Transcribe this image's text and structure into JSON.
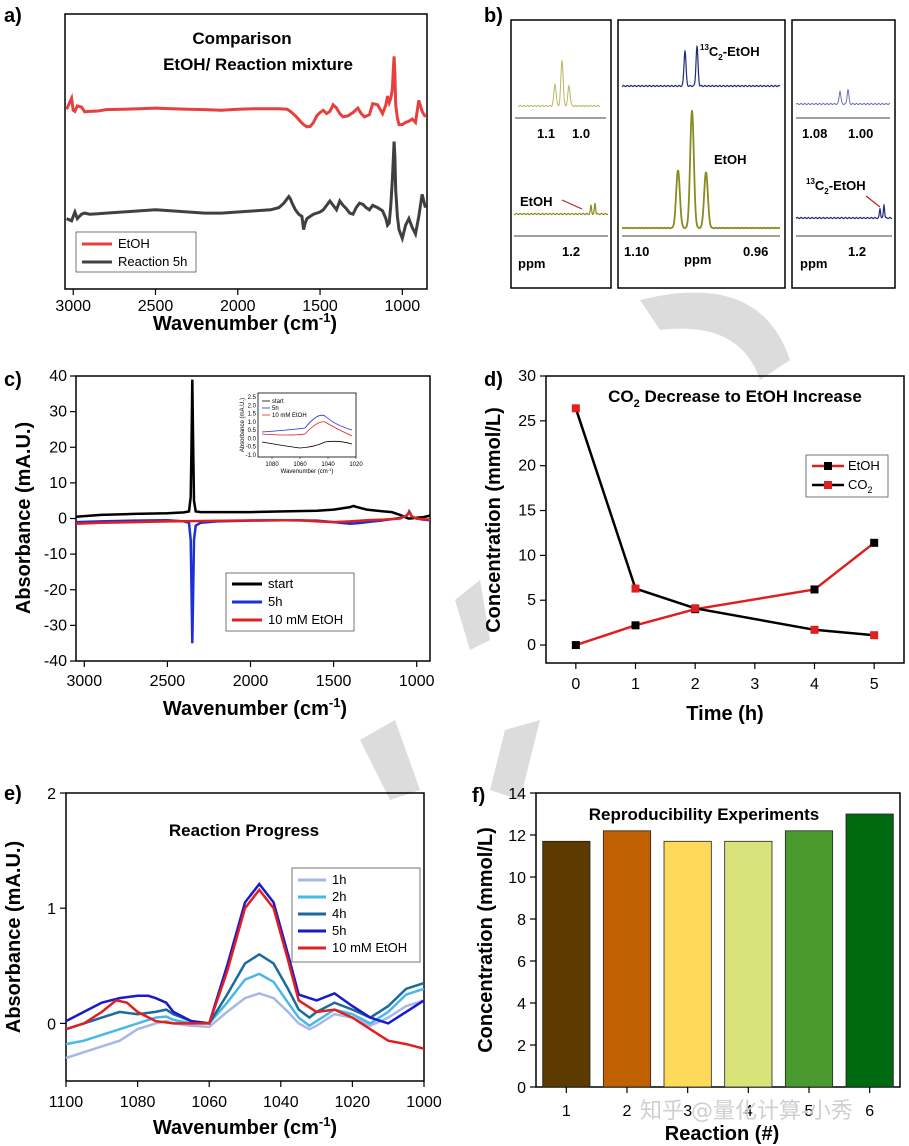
{
  "panel_labels": [
    "a)",
    "b)",
    "c)",
    "d)",
    "e)",
    "f)"
  ],
  "watermark": "知乎 @量化计算-小秀",
  "chart_data": [
    {
      "id": "a",
      "type": "line",
      "title_line1": "Comparison",
      "title_line2": "EtOH/ Reaction mixture",
      "xlabel": "Wavenumber (cm",
      "xlabel_sup": "-1",
      "xlabel_end": ")",
      "xlim": [
        3050,
        850
      ],
      "xticks": [
        "3000",
        "2500",
        "2000",
        "1500",
        "1000"
      ],
      "legend": [
        "EtOH",
        "Reaction 5h"
      ],
      "colors": [
        "#e8403f",
        "#404040"
      ],
      "series": [
        {
          "name": "EtOH",
          "x": [
            3040,
            3010,
            3000,
            2990,
            2975,
            2950,
            2930,
            2900,
            2850,
            2800,
            2700,
            2600,
            2500,
            2400,
            2300,
            2200,
            2100,
            2000,
            1900,
            1800,
            1750,
            1700,
            1680,
            1650,
            1620,
            1600,
            1580,
            1560,
            1540,
            1520,
            1500,
            1480,
            1460,
            1440,
            1420,
            1400,
            1380,
            1360,
            1330,
            1300,
            1270,
            1250,
            1230,
            1200,
            1180,
            1150,
            1120,
            1100,
            1090,
            1080,
            1070,
            1060,
            1055,
            1050,
            1045,
            1040,
            1030,
            1020,
            1000,
            980,
            960,
            940,
            920,
            900,
            880,
            860
          ],
          "y": [
            0.4,
            0.9,
            0.35,
            0.3,
            0.55,
            0.5,
            0.28,
            0.3,
            0.32,
            0.38,
            0.4,
            0.42,
            0.45,
            0.42,
            0.4,
            0.38,
            0.35,
            0.4,
            0.42,
            0.42,
            0.42,
            0.4,
            0.3,
            0.1,
            -0.15,
            -0.3,
            -0.4,
            -0.38,
            -0.2,
            0.1,
            0.25,
            0.35,
            0.2,
            0.3,
            0.6,
            0.45,
            0.2,
            0.05,
            0.1,
            0.25,
            0.45,
            0.2,
            0.05,
            0.15,
            0.65,
            0.6,
            0.2,
            0.6,
            1.0,
            0.7,
            0.9,
            1.3,
            2.2,
            2.8,
            2.0,
            0.6,
            0.0,
            -0.3,
            -0.3,
            -0.2,
            -0.15,
            -0.05,
            -0.2,
            0.8,
            0.3,
            0.05
          ]
        },
        {
          "name": "Reaction 5h",
          "x": [
            3040,
            3010,
            3000,
            2990,
            2975,
            2950,
            2930,
            2900,
            2850,
            2800,
            2700,
            2600,
            2500,
            2400,
            2300,
            2200,
            2100,
            2000,
            1900,
            1800,
            1750,
            1720,
            1700,
            1690,
            1680,
            1670,
            1650,
            1630,
            1610,
            1600,
            1590,
            1580,
            1560,
            1540,
            1500,
            1480,
            1460,
            1440,
            1420,
            1400,
            1380,
            1360,
            1340,
            1320,
            1300,
            1280,
            1260,
            1240,
            1220,
            1200,
            1180,
            1150,
            1120,
            1100,
            1090,
            1080,
            1070,
            1060,
            1050,
            1045,
            1040,
            1030,
            1020,
            1000,
            980,
            960,
            940,
            920,
            900,
            880,
            860
          ],
          "y": [
            -0.3,
            -0.4,
            -0.2,
            0.0,
            -0.3,
            -0.1,
            -0.05,
            -0.1,
            -0.08,
            -0.05,
            0.0,
            0.05,
            0.1,
            0.05,
            0.0,
            -0.05,
            -0.05,
            0.0,
            0.05,
            0.1,
            0.2,
            0.4,
            0.6,
            0.7,
            0.6,
            0.4,
            0.1,
            -0.1,
            -0.2,
            -0.8,
            -0.5,
            -0.3,
            -0.2,
            -0.1,
            0.0,
            0.1,
            0.3,
            0.5,
            0.3,
            0.1,
            0.5,
            0.3,
            0.15,
            -0.05,
            -0.1,
            0.2,
            0.4,
            0.35,
            0.2,
            0.1,
            0.3,
            0.2,
            0.05,
            -0.3,
            -0.6,
            -0.5,
            0.3,
            1.5,
            3.2,
            2.5,
            1.0,
            -0.2,
            -0.8,
            -1.2,
            -0.6,
            -0.3,
            -0.7,
            -1.0,
            -0.2,
            0.8,
            0.2
          ]
        }
      ]
    },
    {
      "id": "b",
      "type": "nmr_spectra",
      "boxes": [
        {
          "top_ticks": [
            "1.1",
            "1.0"
          ],
          "bottom_label": "EtOH",
          "ppm_label": "ppm",
          "ppm_value": "1.2"
        },
        {
          "top_label": "C",
          "top_sup": "13",
          "top_sub": "2",
          "top_end": "-EtOH",
          "mid_label": "EtOH",
          "ticks": [
            "1.10",
            "ppm",
            "0.96"
          ]
        },
        {
          "top_ticks": [
            "1.08",
            "1.00"
          ],
          "bottom_label_sup": "13",
          "bottom_label_main": "C",
          "bottom_label_sub": "2",
          "bottom_label_end": "-EtOH",
          "ppm_label": "ppm",
          "ppm_value": "1.2"
        }
      ],
      "colors": {
        "olive": "#8b8a1f",
        "navy": "#1f2a7a",
        "light_olive": "#b9b860",
        "light_navy": "#6a72b8"
      }
    },
    {
      "id": "c",
      "type": "line",
      "ylabel": "Absorbance (mA.U.)",
      "xlabel": "Wavenumber (cm",
      "xlabel_sup": "-1",
      "xlabel_end": ")",
      "xlim": [
        3050,
        920
      ],
      "ylim": [
        -40,
        40
      ],
      "xticks": [
        3000,
        2500,
        2000,
        1500,
        1000
      ],
      "yticks": [
        40,
        30,
        20,
        10,
        0,
        -10,
        -20,
        -30,
        -40
      ],
      "legend": [
        "start",
        "5h",
        "10 mM EtOH"
      ],
      "colors": [
        "#000000",
        "#1f2fd6",
        "#e02020"
      ],
      "series": [
        {
          "name": "start",
          "x": [
            3050,
            2900,
            2700,
            2500,
            2400,
            2370,
            2360,
            2355,
            2350,
            2345,
            2340,
            2330,
            2300,
            2200,
            2000,
            1800,
            1600,
            1500,
            1400,
            1380,
            1360,
            1300,
            1200,
            1150,
            1100,
            1080,
            1060,
            1050,
            1040,
            1000,
            960,
            920
          ],
          "y": [
            0.5,
            1.0,
            1.3,
            1.5,
            1.7,
            2.0,
            6.0,
            20.0,
            39.0,
            20.0,
            5.0,
            2.0,
            1.8,
            1.8,
            1.8,
            2.0,
            2.2,
            2.5,
            3.2,
            3.5,
            3.2,
            2.5,
            2.0,
            1.8,
            1.0,
            0.6,
            0.2,
            0.0,
            0.0,
            0.2,
            0.4,
            0.8
          ]
        },
        {
          "name": "5h",
          "x": [
            3050,
            2900,
            2700,
            2500,
            2400,
            2370,
            2360,
            2355,
            2350,
            2345,
            2340,
            2330,
            2300,
            2200,
            2000,
            1800,
            1600,
            1500,
            1400,
            1350,
            1300,
            1200,
            1150,
            1100,
            1060,
            1050,
            1045,
            1040,
            1030,
            1000,
            960,
            920
          ],
          "y": [
            -1.0,
            -0.8,
            -0.6,
            -0.5,
            -0.8,
            -1.2,
            -6.0,
            -20.0,
            -35.0,
            -20.0,
            -6.0,
            -2.0,
            -1.2,
            -0.8,
            -0.6,
            -0.5,
            -0.6,
            -1.0,
            -1.5,
            -1.3,
            -1.0,
            -0.5,
            -0.2,
            0.2,
            0.8,
            1.5,
            2.0,
            1.6,
            0.6,
            0.0,
            -0.3,
            -0.5
          ]
        },
        {
          "name": "10 mM EtOH",
          "x": [
            3050,
            2900,
            2700,
            2500,
            2300,
            2100,
            1900,
            1700,
            1600,
            1500,
            1400,
            1300,
            1200,
            1100,
            1060,
            1050,
            1045,
            1040,
            1030,
            1000,
            960,
            920
          ],
          "y": [
            -1.5,
            -1.2,
            -1.0,
            -0.8,
            -0.7,
            -0.6,
            -0.5,
            -0.5,
            -0.8,
            -1.0,
            -0.8,
            -0.5,
            -0.3,
            0.0,
            0.8,
            1.5,
            1.8,
            1.5,
            0.6,
            0.0,
            -0.2,
            -0.3
          ]
        }
      ],
      "inset": {
        "ylabel": "Absorbance (mA.U.)",
        "xlabel": "Wavenumber (cm",
        "xlabel_sup": "-1",
        "xlabel_end": ")",
        "xticks": [
          1080,
          1060,
          1040,
          1020
        ],
        "yticks": [
          "2.5",
          "2.0",
          "1.5",
          "1.0",
          "0.5",
          "0.0",
          "-0.5",
          "-1.0"
        ],
        "legend": [
          "start",
          "5h",
          "10 mM EtOH"
        ]
      }
    },
    {
      "id": "d",
      "type": "line",
      "title_main": "CO",
      "title_sub": "2",
      "title_end": " Decrease to EtOH Increase",
      "xlabel": "Time (h)",
      "ylabel": "Concentration (mmol/L)",
      "xlim": [
        -0.5,
        5.5
      ],
      "ylim": [
        -2,
        30
      ],
      "xticks": [
        0,
        1,
        2,
        3,
        4,
        5
      ],
      "yticks": [
        0,
        5,
        10,
        15,
        20,
        25,
        30
      ],
      "legend": [
        "EtOH",
        "CO"
      ],
      "legend_sub": "2",
      "series": [
        {
          "name": "EtOH",
          "x": [
            0,
            1,
            2,
            4,
            5
          ],
          "values": [
            0.0,
            2.2,
            4.0,
            6.2,
            11.4
          ],
          "line_color": "#e02020",
          "marker_color": "#000000"
        },
        {
          "name": "CO2",
          "x": [
            0,
            1,
            2,
            4,
            5
          ],
          "values": [
            26.4,
            6.3,
            4.1,
            1.7,
            1.1
          ],
          "line_color": "#000000",
          "marker_color": "#e02020"
        }
      ]
    },
    {
      "id": "e",
      "type": "line",
      "title": "Reaction Progress",
      "ylabel": "Absorbance (mA.U.)",
      "xlabel": "Wavenumber (cm",
      "xlabel_sup": "-1",
      "xlabel_end": ")",
      "xlim": [
        1100,
        1000
      ],
      "ylim": [
        -0.5,
        2.0
      ],
      "xticks": [
        1100,
        1080,
        1060,
        1040,
        1020,
        1000
      ],
      "yticks": [
        0,
        1,
        2
      ],
      "legend": [
        "1h",
        "2h",
        "4h",
        "5h",
        "10 mM EtOH"
      ],
      "colors": [
        "#a8b8e6",
        "#49b8e8",
        "#1a6aa0",
        "#1a1acc",
        "#e02020"
      ],
      "series": [
        {
          "name": "1h",
          "x": [
            1100,
            1095,
            1090,
            1085,
            1080,
            1075,
            1072,
            1070,
            1065,
            1060,
            1055,
            1050,
            1046,
            1042,
            1038,
            1035,
            1032,
            1030,
            1025,
            1020,
            1015,
            1010,
            1005,
            1000
          ],
          "y": [
            -0.3,
            -0.25,
            -0.2,
            -0.15,
            -0.05,
            0.0,
            0.02,
            0.0,
            -0.02,
            -0.03,
            0.1,
            0.22,
            0.26,
            0.22,
            0.1,
            0.0,
            -0.05,
            -0.02,
            0.08,
            0.05,
            -0.02,
            0.05,
            0.15,
            0.2
          ]
        },
        {
          "name": "2h",
          "x": [
            1100,
            1095,
            1090,
            1085,
            1080,
            1075,
            1072,
            1070,
            1065,
            1060,
            1055,
            1050,
            1046,
            1042,
            1038,
            1035,
            1032,
            1030,
            1025,
            1020,
            1015,
            1010,
            1005,
            1000
          ],
          "y": [
            -0.18,
            -0.15,
            -0.1,
            -0.05,
            0.0,
            0.05,
            0.06,
            0.03,
            0.0,
            0.0,
            0.18,
            0.38,
            0.43,
            0.36,
            0.18,
            0.05,
            -0.02,
            0.02,
            0.12,
            0.08,
            0.0,
            0.1,
            0.25,
            0.3
          ]
        },
        {
          "name": "4h",
          "x": [
            1100,
            1095,
            1090,
            1085,
            1080,
            1075,
            1072,
            1070,
            1065,
            1060,
            1055,
            1050,
            1046,
            1042,
            1038,
            1035,
            1032,
            1030,
            1025,
            1020,
            1015,
            1010,
            1005,
            1000
          ],
          "y": [
            -0.05,
            0.0,
            0.05,
            0.1,
            0.08,
            0.1,
            0.12,
            0.08,
            0.02,
            0.0,
            0.25,
            0.52,
            0.6,
            0.52,
            0.3,
            0.12,
            0.05,
            0.1,
            0.18,
            0.12,
            0.05,
            0.15,
            0.3,
            0.35
          ]
        },
        {
          "name": "5h",
          "x": [
            1100,
            1095,
            1090,
            1085,
            1080,
            1077,
            1075,
            1072,
            1070,
            1065,
            1060,
            1055,
            1050,
            1046,
            1042,
            1038,
            1035,
            1030,
            1025,
            1020,
            1015,
            1010,
            1005,
            1000
          ],
          "y": [
            0.02,
            0.1,
            0.18,
            0.22,
            0.24,
            0.24,
            0.22,
            0.18,
            0.1,
            0.02,
            0.0,
            0.5,
            1.05,
            1.21,
            1.05,
            0.6,
            0.25,
            0.2,
            0.26,
            0.15,
            0.05,
            0.0,
            0.1,
            0.2
          ]
        },
        {
          "name": "10 mM EtOH",
          "x": [
            1100,
            1095,
            1090,
            1086,
            1083,
            1080,
            1075,
            1070,
            1065,
            1060,
            1055,
            1050,
            1046,
            1042,
            1038,
            1035,
            1030,
            1025,
            1020,
            1015,
            1010,
            1005,
            1000
          ],
          "y": [
            -0.05,
            0.0,
            0.1,
            0.2,
            0.18,
            0.1,
            0.02,
            0.0,
            0.0,
            0.0,
            0.45,
            1.0,
            1.16,
            1.0,
            0.55,
            0.2,
            0.1,
            0.12,
            0.05,
            -0.05,
            -0.15,
            -0.18,
            -0.22
          ]
        }
      ]
    },
    {
      "id": "f",
      "type": "bar",
      "title": "Reproducibility Experiments",
      "xlabel": "Reaction (#)",
      "ylabel": "Concentration (mmol/L)",
      "categories": [
        "1",
        "2",
        "3",
        "4",
        "5",
        "6"
      ],
      "values": [
        11.7,
        12.2,
        11.7,
        11.7,
        12.2,
        13.0
      ],
      "colors": [
        "#5c3a00",
        "#c06000",
        "#ffd95a",
        "#d9e37a",
        "#4a9a30",
        "#006a10"
      ],
      "ylim": [
        0,
        14
      ],
      "yticks": [
        0,
        2,
        4,
        6,
        8,
        10,
        12,
        14
      ]
    }
  ]
}
